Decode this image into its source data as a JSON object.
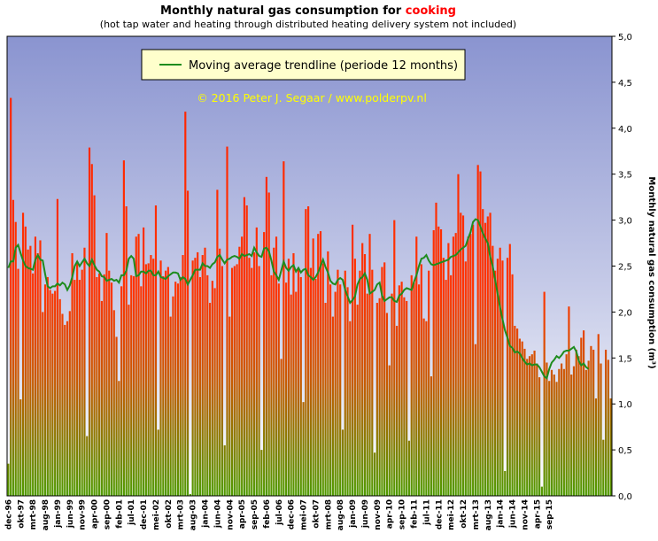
{
  "chart_data": {
    "type": "bar",
    "title_part1": "Monthly natural gas consumption for ",
    "title_highlight": "cooking",
    "subtitle": "(hot tap water and heating through distributed heating delivery system not included)",
    "ylabel": "Monthly natural gas consumption (m³)",
    "ylim": [
      0,
      5
    ],
    "y_ticks": [
      "0,0",
      "0,5",
      "1,0",
      "1,5",
      "2,0",
      "2,5",
      "3,0",
      "3,5",
      "4,0",
      "4,5",
      "5,0"
    ],
    "x_ticks": [
      "dec-96",
      "okt-97",
      "mrt-98",
      "aug-98",
      "jan-99",
      "jun-99",
      "nov-99",
      "apr-00",
      "sep-00",
      "feb-01",
      "jul-01",
      "dec-01",
      "mei-02",
      "okt-02",
      "mrt-03",
      "aug-03",
      "jan-04",
      "jun-04",
      "nov-04",
      "apr-05",
      "sep-05",
      "feb-06",
      "jul-06",
      "dec-06",
      "mei-07",
      "okt-07",
      "mrt-08",
      "aug-08",
      "jan-09",
      "jun-09",
      "nov-09",
      "apr-10",
      "sep-10",
      "feb-11",
      "jul-11",
      "dec-11",
      "mei-12",
      "okt-12",
      "mrt-13",
      "aug-13",
      "jan-14",
      "jun-14",
      "nov-14",
      "apr-15",
      "sep-15"
    ],
    "legend": "Moving average trendline (periode 12 months)",
    "annotation": "© 2016 Peter J. Segaar / www.polderpv.nl",
    "grid": false,
    "legend_position": "top-center",
    "colors": {
      "bar_top": "#ff2200",
      "bar_bottom": "#5a9a00",
      "trendline": "#1e8c1e",
      "bg_top": "#8c96d2",
      "bg_bottom": "#ffffff",
      "title_highlight": "#ff0000",
      "annotation": "#ffff00",
      "legend_bg": "#ffffcc"
    },
    "series": [
      {
        "values": [
          0.35,
          4.33,
          3.22,
          2.98,
          2.47,
          1.05,
          3.08,
          2.93,
          2.68,
          2.72,
          2.42,
          2.82,
          2.64,
          2.78,
          2.0,
          2.3,
          2.38,
          2.24,
          2.2,
          2.23,
          3.23,
          2.14,
          1.98,
          1.86,
          1.9,
          2.01,
          2.64,
          2.35,
          2.55,
          2.35,
          2.46,
          2.7,
          0.65,
          3.79,
          3.61,
          3.27,
          2.38,
          2.42,
          2.12,
          2.41,
          2.86,
          2.45,
          2.32,
          2.02,
          1.73,
          1.25,
          2.28,
          3.65,
          3.15,
          2.08,
          2.4,
          2.39,
          2.82,
          2.85,
          2.28,
          2.92,
          2.52,
          2.53,
          2.62,
          2.58,
          3.16,
          0.72,
          2.56,
          2.39,
          2.45,
          2.49,
          1.95,
          2.17,
          2.33,
          2.31,
          2.38,
          2.62,
          4.18,
          3.32,
          0.02,
          2.56,
          2.59,
          2.65,
          2.38,
          2.62,
          2.7,
          2.4,
          2.1,
          2.34,
          2.26,
          3.33,
          2.69,
          2.5,
          0.55,
          3.8,
          1.95,
          2.48,
          2.5,
          2.52,
          2.71,
          2.82,
          3.25,
          3.16,
          2.59,
          2.48,
          2.65,
          2.92,
          2.5,
          0.5,
          2.87,
          3.47,
          3.3,
          2.4,
          2.7,
          2.82,
          2.31,
          1.49,
          3.64,
          2.32,
          2.58,
          2.19,
          2.64,
          2.22,
          2.48,
          2.38,
          1.02,
          3.12,
          3.15,
          2.48,
          2.8,
          2.36,
          2.85,
          2.88,
          2.53,
          2.1,
          2.66,
          2.3,
          1.95,
          2.22,
          2.46,
          2.3,
          0.72,
          2.45,
          2.27,
          1.9,
          2.95,
          2.58,
          2.08,
          2.45,
          2.75,
          2.63,
          2.2,
          2.85,
          2.46,
          0.47,
          2.1,
          2.15,
          2.49,
          2.54,
          1.99,
          1.42,
          2.2,
          3.0,
          1.85,
          2.29,
          2.33,
          2.16,
          2.12,
          0.6,
          2.4,
          2.32,
          2.82,
          2.3,
          2.52,
          1.93,
          1.9,
          2.45,
          1.3,
          2.89,
          3.19,
          2.93,
          2.9,
          2.59,
          2.35,
          2.75,
          2.4,
          2.82,
          2.86,
          3.5,
          3.08,
          3.05,
          2.55,
          2.82,
          2.85,
          2.95,
          1.65,
          3.6,
          3.53,
          3.12,
          2.97,
          3.04,
          3.08,
          2.72,
          2.45,
          2.58,
          2.7,
          2.56,
          0.27,
          2.59,
          2.74,
          2.41,
          1.85,
          1.82,
          1.71,
          1.68,
          1.6,
          1.49,
          1.52,
          1.54,
          1.58,
          1.44,
          1.29,
          0.1,
          2.22,
          1.45,
          1.25,
          1.37,
          1.32,
          1.24,
          1.38,
          1.44,
          1.38,
          1.54,
          2.06,
          1.32,
          1.41,
          1.59,
          1.52,
          1.72,
          1.8,
          1.37,
          1.47,
          1.63,
          1.59,
          1.06,
          1.76,
          1.44,
          0.61,
          1.59,
          1.48,
          1.06
        ]
      },
      {
        "name": "Moving average trendline (periode 12 months)",
        "values": [
          2.48,
          2.55,
          2.55,
          2.7,
          2.73,
          2.64,
          2.56,
          2.5,
          2.48,
          2.47,
          2.46,
          2.57,
          2.62,
          2.57,
          2.56,
          2.41,
          2.28,
          2.26,
          2.28,
          2.28,
          2.31,
          2.29,
          2.32,
          2.3,
          2.24,
          2.29,
          2.38,
          2.5,
          2.55,
          2.5,
          2.54,
          2.58,
          2.53,
          2.5,
          2.57,
          2.51,
          2.46,
          2.44,
          2.39,
          2.38,
          2.34,
          2.35,
          2.36,
          2.34,
          2.35,
          2.32,
          2.4,
          2.4,
          2.45,
          2.58,
          2.61,
          2.58,
          2.39,
          2.4,
          2.44,
          2.44,
          2.42,
          2.45,
          2.45,
          2.4,
          2.4,
          2.44,
          2.38,
          2.37,
          2.36,
          2.39,
          2.41,
          2.43,
          2.43,
          2.42,
          2.35,
          2.38,
          2.36,
          2.3,
          2.35,
          2.4,
          2.46,
          2.46,
          2.46,
          2.53,
          2.5,
          2.5,
          2.48,
          2.52,
          2.54,
          2.6,
          2.62,
          2.57,
          2.53,
          2.57,
          2.58,
          2.6,
          2.61,
          2.6,
          2.58,
          2.63,
          2.61,
          2.62,
          2.63,
          2.61,
          2.7,
          2.65,
          2.61,
          2.6,
          2.69,
          2.7,
          2.66,
          2.56,
          2.44,
          2.4,
          2.35,
          2.45,
          2.55,
          2.48,
          2.45,
          2.49,
          2.51,
          2.44,
          2.48,
          2.43,
          2.46,
          2.47,
          2.4,
          2.38,
          2.35,
          2.38,
          2.43,
          2.5,
          2.57,
          2.49,
          2.43,
          2.34,
          2.31,
          2.3,
          2.35,
          2.37,
          2.35,
          2.24,
          2.17,
          2.1,
          2.13,
          2.17,
          2.3,
          2.36,
          2.38,
          2.42,
          2.35,
          2.2,
          2.22,
          2.24,
          2.3,
          2.32,
          2.18,
          2.12,
          2.14,
          2.16,
          2.16,
          2.12,
          2.11,
          2.18,
          2.2,
          2.24,
          2.26,
          2.25,
          2.24,
          2.33,
          2.4,
          2.5,
          2.58,
          2.59,
          2.62,
          2.56,
          2.52,
          2.51,
          2.52,
          2.53,
          2.54,
          2.55,
          2.56,
          2.57,
          2.6,
          2.61,
          2.62,
          2.65,
          2.68,
          2.7,
          2.72,
          2.8,
          2.87,
          2.98,
          3.01,
          3.0,
          2.93,
          2.86,
          2.8,
          2.75,
          2.6,
          2.5,
          2.35,
          2.2,
          2.05,
          1.92,
          1.8,
          1.72,
          1.63,
          1.61,
          1.56,
          1.57,
          1.55,
          1.5,
          1.46,
          1.43,
          1.44,
          1.42,
          1.43,
          1.43,
          1.4,
          1.35,
          1.3,
          1.28,
          1.38,
          1.45,
          1.48,
          1.52,
          1.5,
          1.53,
          1.57,
          1.58,
          1.58,
          1.6,
          1.62,
          1.57,
          1.47,
          1.42,
          1.44,
          1.4,
          1.38
        ]
      }
    ]
  }
}
